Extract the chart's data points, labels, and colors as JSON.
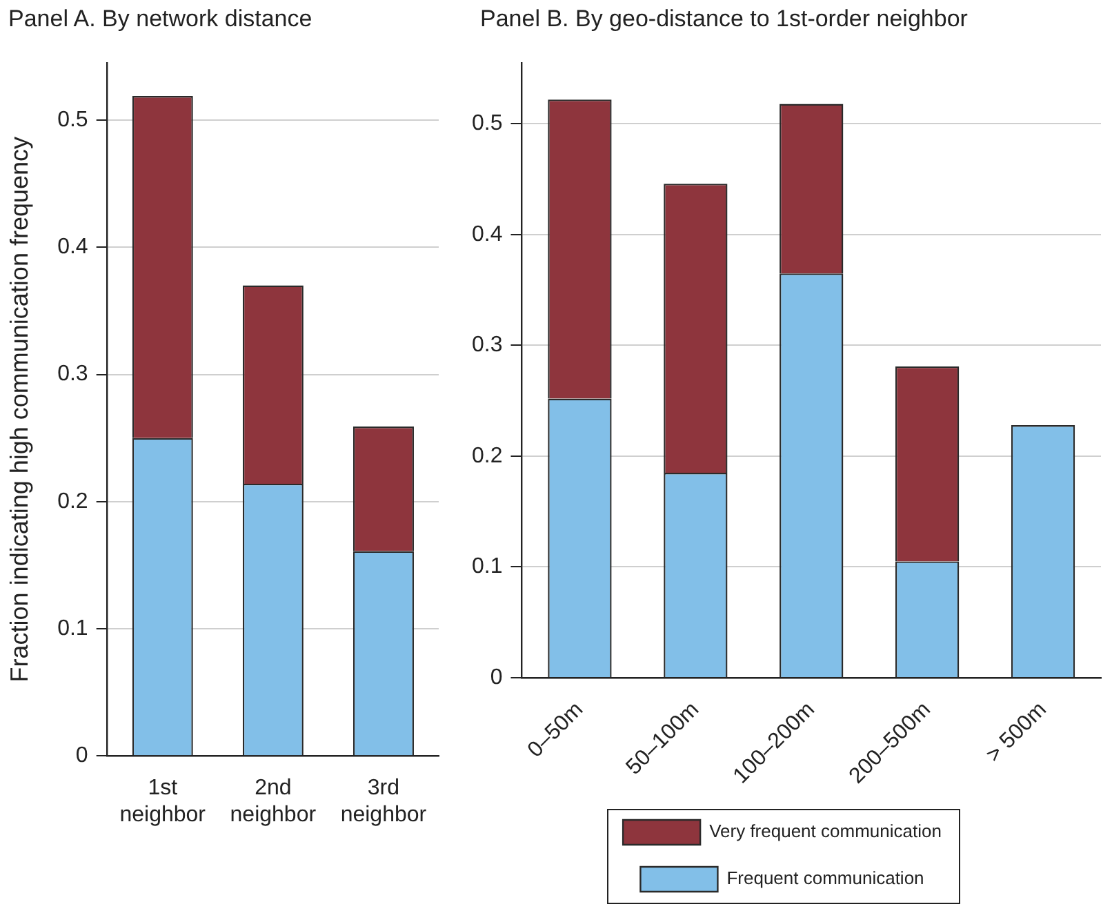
{
  "chart_data": [
    {
      "type": "bar",
      "title": "Panel A. By network distance",
      "ylabel": "Fraction indicating high communication frequency",
      "categories": [
        "1st neighbor",
        "2nd neighbor",
        "3rd neighbor"
      ],
      "stacked": true,
      "ylim": [
        0,
        0.545
      ],
      "yticks": [
        0,
        0.1,
        0.2,
        0.3,
        0.4,
        0.5
      ],
      "grid": "y",
      "series": [
        {
          "color": "#82bfe8",
          "values": [
            0.25,
            0.214,
            0.161
          ]
        },
        {
          "color": "#8e353d",
          "values": [
            0.269,
            0.156,
            0.098
          ]
        }
      ]
    },
    {
      "type": "bar",
      "title": "Panel B. By geo-distance to 1st-order neighbor",
      "categories": [
        "0–50m",
        "50–100m",
        "100–200m",
        "200–500m",
        "> 500m"
      ],
      "stacked": true,
      "ylim": [
        0,
        0.555
      ],
      "yticks": [
        0,
        0.1,
        0.2,
        0.3,
        0.4,
        0.5
      ],
      "grid": "y",
      "legend": "bottom",
      "series": [
        {
          "name": "Frequent communication",
          "color": "#82bfe8",
          "values": [
            0.252,
            0.185,
            0.365,
            0.105,
            0.228
          ]
        },
        {
          "name": "Very frequent communication",
          "color": "#8e353d",
          "values": [
            0.27,
            0.261,
            0.153,
            0.176,
            null
          ]
        }
      ]
    }
  ]
}
